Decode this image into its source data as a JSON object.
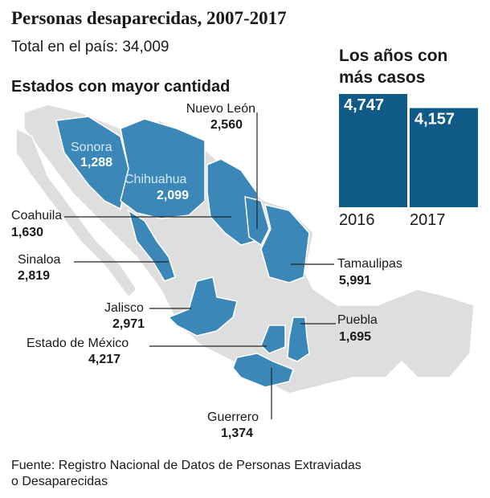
{
  "title": "Personas desaparecidas, 2007-2017",
  "subtitle": "Total en el país: 34,009",
  "map": {
    "title": "Estados con mayor cantidad",
    "states": [
      {
        "name": "Nuevo León",
        "value": "2,560"
      },
      {
        "name": "Sonora",
        "value": "1,288"
      },
      {
        "name": "Chihuahua",
        "value": "2,099"
      },
      {
        "name": "Coahuila",
        "value": "1,630"
      },
      {
        "name": "Sinaloa",
        "value": "2,819"
      },
      {
        "name": "Tamaulipas",
        "value": "5,991"
      },
      {
        "name": "Jalisco",
        "value": "2,971"
      },
      {
        "name": "Puebla",
        "value": "1,695"
      },
      {
        "name": "Estado de México",
        "value": "4,217"
      },
      {
        "name": "Guerrero",
        "value": "1,374"
      }
    ]
  },
  "chart_data": {
    "type": "bar",
    "title": [
      "Los años con",
      "más casos"
    ],
    "categories": [
      "2016",
      "2017"
    ],
    "values": [
      4747,
      4157
    ],
    "value_labels": [
      "4,747",
      "4,157"
    ],
    "color": "#0f5a86"
  },
  "source": [
    "Fuente: Registro Nacional de Datos de Personas Extraviadas",
    "o Desaparecidas"
  ]
}
